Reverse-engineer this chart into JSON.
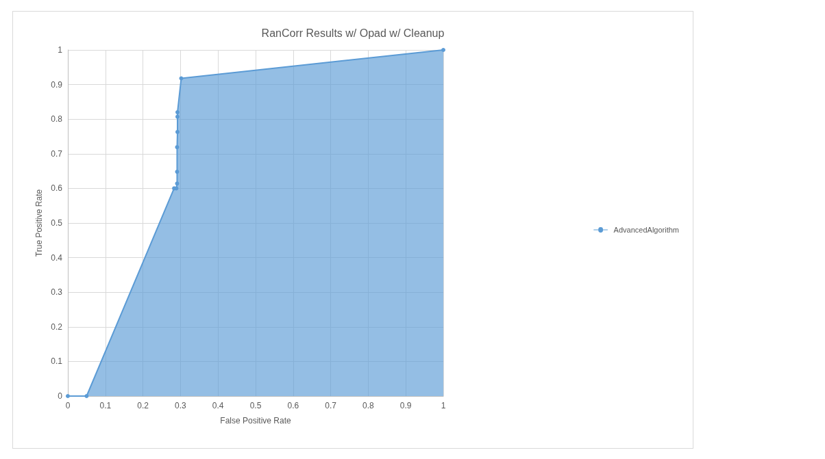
{
  "chart_data": {
    "type": "area",
    "title": "RanCorr Results w/ Opad w/ Cleanup",
    "xlabel": "False Positive Rate",
    "ylabel": "True Positive Rate",
    "x": [
      0,
      0.05,
      0.283,
      0.289,
      0.291,
      0.291,
      0.291,
      0.292,
      0.292,
      0.292,
      0.302,
      1
    ],
    "series": [
      {
        "name": "AdvancedAlgorithm",
        "color": "#5b9bd5",
        "values": [
          0,
          0,
          0.6,
          0.6,
          0.614,
          0.648,
          0.719,
          0.763,
          0.807,
          0.82,
          0.918,
          1
        ]
      }
    ],
    "xlim": [
      0,
      1
    ],
    "xticks": [
      0,
      0.1,
      0.2,
      0.3,
      0.4,
      0.5,
      0.6,
      0.7,
      0.8,
      0.9,
      1
    ],
    "ylim": [
      0,
      1
    ],
    "yticks": [
      0,
      0.1,
      0.2,
      0.3,
      0.4,
      0.5,
      0.6,
      0.7,
      0.8,
      0.9,
      1
    ],
    "grid": true,
    "legend": "right",
    "marker": "circle"
  }
}
